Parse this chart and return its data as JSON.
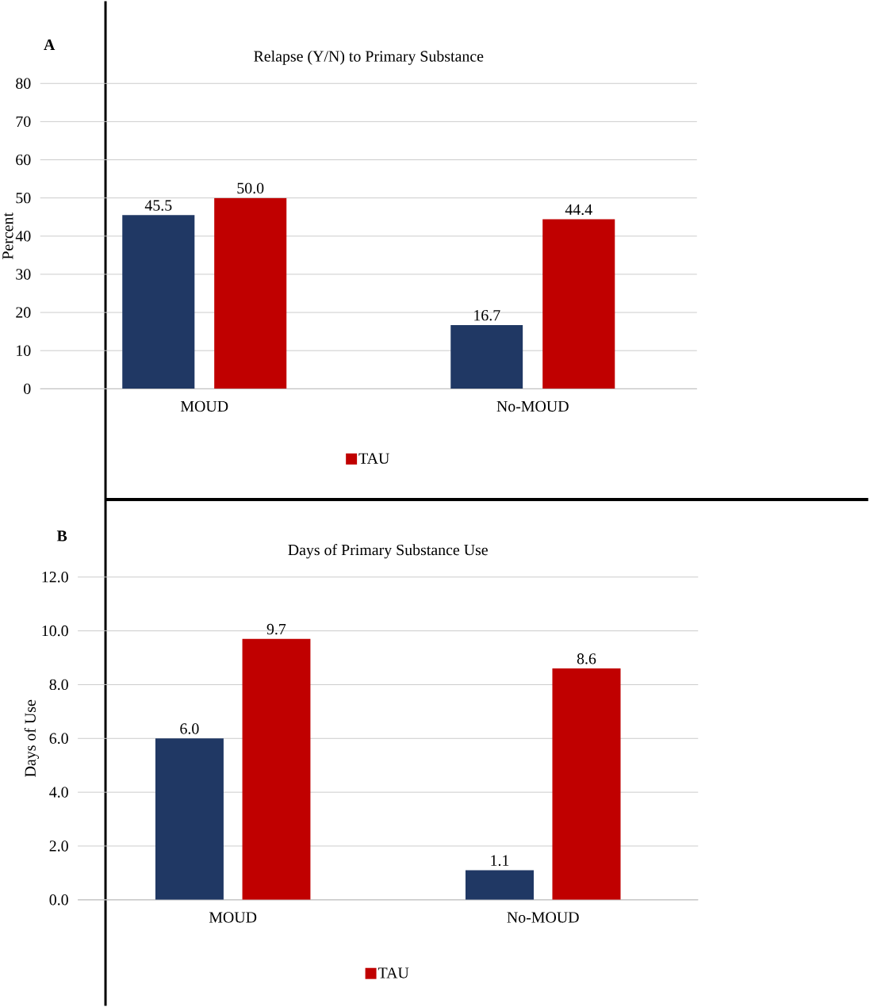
{
  "chart_data": [
    {
      "type": "bar",
      "title": "Relapse (Y/N) to Primary Substance",
      "ylabel": "Percent",
      "annotations": [
        "A"
      ],
      "categories": [
        "MOUD",
        "No-MOUD"
      ],
      "series": [
        {
          "color": "#203864",
          "values": [
            45.5,
            16.7
          ],
          "value_labels": [
            "45.5",
            "16.7"
          ]
        },
        {
          "name": "TAU",
          "color": "#c00000",
          "values": [
            50.0,
            44.4
          ],
          "value_labels": [
            "50.0",
            "44.4"
          ]
        }
      ],
      "ylim": [
        0,
        80
      ],
      "yticks": [
        0,
        10,
        20,
        30,
        40,
        50,
        60,
        70,
        80
      ],
      "grid": "y",
      "legend": "bottom"
    },
    {
      "type": "bar",
      "title": "Days of Primary Substance Use",
      "ylabel": "Days of Use",
      "annotations": [
        "B"
      ],
      "categories": [
        "MOUD",
        "No-MOUD"
      ],
      "series": [
        {
          "color": "#203864",
          "values": [
            6.0,
            1.1
          ],
          "value_labels": [
            "6.0",
            "1.1"
          ]
        },
        {
          "name": "TAU",
          "color": "#c00000",
          "values": [
            9.7,
            8.6
          ],
          "value_labels": [
            "9.7",
            "8.6"
          ]
        }
      ],
      "ylim": [
        0,
        12
      ],
      "yticks": [
        {
          "value": 0,
          "label": "0.0"
        },
        {
          "value": 2,
          "label": "2.0"
        },
        {
          "value": 4,
          "label": "4.0"
        },
        {
          "value": 6,
          "label": "6.0"
        },
        {
          "value": 8,
          "label": "8.0"
        },
        {
          "value": 10,
          "label": "10.0"
        },
        {
          "value": 12,
          "label": "12.0"
        }
      ],
      "grid": "y",
      "legend": "bottom"
    }
  ]
}
